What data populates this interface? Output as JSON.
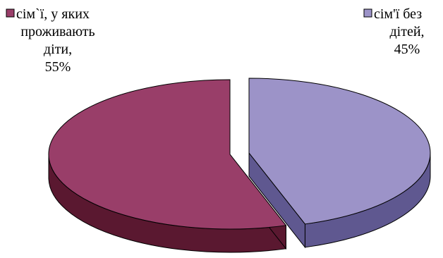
{
  "chart_data": {
    "type": "pie",
    "style": "3d-exploded",
    "title": "",
    "slices": [
      {
        "label_lines": [
          "сім`ї, у яких",
          "проживають",
          "діти,",
          "55%"
        ],
        "value": 55,
        "color": "#993E69",
        "side_color": "#5A1830"
      },
      {
        "label_lines": [
          "сім'ї без",
          "дітей,",
          "45%"
        ],
        "value": 45,
        "color": "#9C93C8",
        "side_color": "#5F5890"
      }
    ]
  }
}
